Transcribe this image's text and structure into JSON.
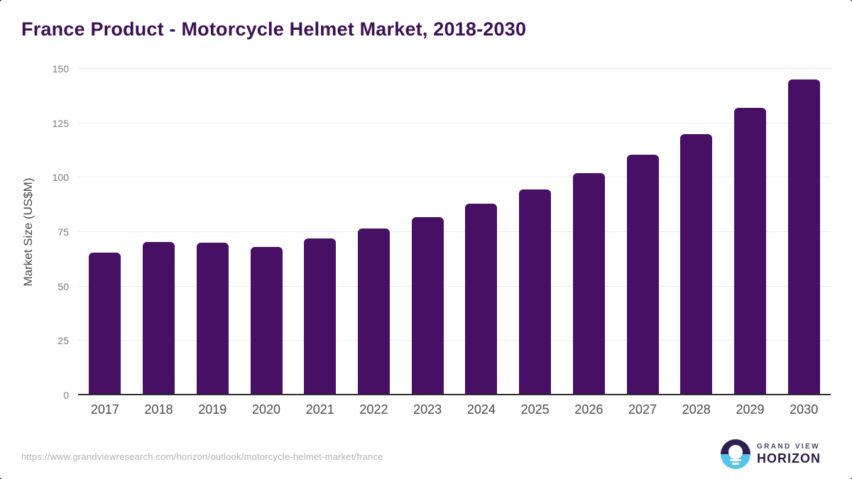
{
  "title": "France Product - Motorcycle Helmet Market, 2018-2030",
  "chart_data": {
    "type": "bar",
    "categories": [
      "2017",
      "2018",
      "2019",
      "2020",
      "2021",
      "2022",
      "2023",
      "2024",
      "2025",
      "2026",
      "2027",
      "2028",
      "2029",
      "2030"
    ],
    "values": [
      65.5,
      70.5,
      70,
      68,
      72,
      76.5,
      82,
      88,
      94.5,
      102,
      110.5,
      120,
      132,
      145
    ],
    "title": "France Product - Motorcycle Helmet Market, 2018-2030",
    "xlabel": "",
    "ylabel": "Market Size (US$M)",
    "ylim": [
      0,
      150
    ],
    "yticks": [
      0,
      25,
      50,
      75,
      100,
      125,
      150
    ],
    "grid": true,
    "legend": "none"
  },
  "colors": {
    "bar": "#471064",
    "title": "#3c1053",
    "axis_line": "#2e2e2e",
    "gridline": "#ebebeb",
    "y_tick": "#7a7a7a",
    "x_tick": "#4a4a4a",
    "url_text": "#b3b3b3",
    "logo_dark_purple": "#2f1f4e",
    "logo_blue": "#58c2ee"
  },
  "footer": {
    "source_url": "https://www.grandviewresearch.com/horizon/outlook/motorcycle-helmet-market/france",
    "logo": {
      "line1": "GRAND VIEW",
      "line2": "HORIZON"
    }
  }
}
